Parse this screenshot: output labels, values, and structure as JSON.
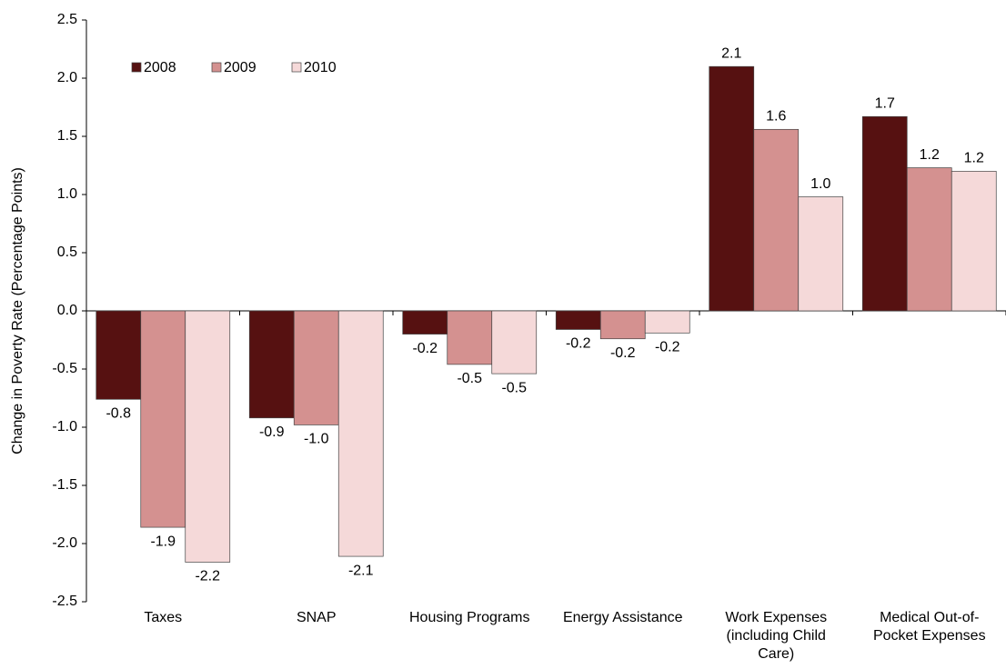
{
  "chart_data": {
    "type": "bar",
    "y_label": "Change in Poverty Rate (Percentage Points)",
    "categories": [
      "Taxes",
      "SNAP",
      "Housing Programs",
      "Energy Assistance",
      "Work Expenses (including Child Care)",
      "Medical Out-of-Pocket Expenses"
    ],
    "series": [
      {
        "name": "2008",
        "color": "#561111",
        "values": [
          -0.76,
          -0.92,
          -0.2,
          -0.16,
          2.1,
          1.67
        ],
        "value_labels": [
          "-0.8",
          "-0.9",
          "-0.2",
          "-0.2",
          "2.1",
          "1.7"
        ]
      },
      {
        "name": "2009",
        "color": "#d49190",
        "values": [
          -1.86,
          -0.98,
          -0.46,
          -0.24,
          1.56,
          1.23
        ],
        "value_labels": [
          "-1.9",
          "-1.0",
          "-0.5",
          "-0.2",
          "1.6",
          "1.2"
        ]
      },
      {
        "name": "2010",
        "color": "#f5d9d9",
        "values": [
          -2.16,
          -2.11,
          -0.54,
          -0.19,
          0.98,
          1.2
        ],
        "value_labels": [
          "-2.2",
          "-2.1",
          "-0.5",
          "-0.2",
          "1.0",
          "1.2"
        ]
      }
    ],
    "ylim": [
      -2.5,
      2.5
    ],
    "yticks": [
      -2.5,
      {
        "value": -2,
        "label": "-2.0"
      },
      -1.5,
      {
        "value": -1,
        "label": "-1.0"
      },
      -0.5,
      {
        "value": 0,
        "label": "0.0"
      },
      0.5,
      {
        "value": 1,
        "label": "1.0"
      },
      1.5,
      {
        "value": 2,
        "label": "2.0"
      },
      2.5
    ],
    "legend": "upper left"
  }
}
